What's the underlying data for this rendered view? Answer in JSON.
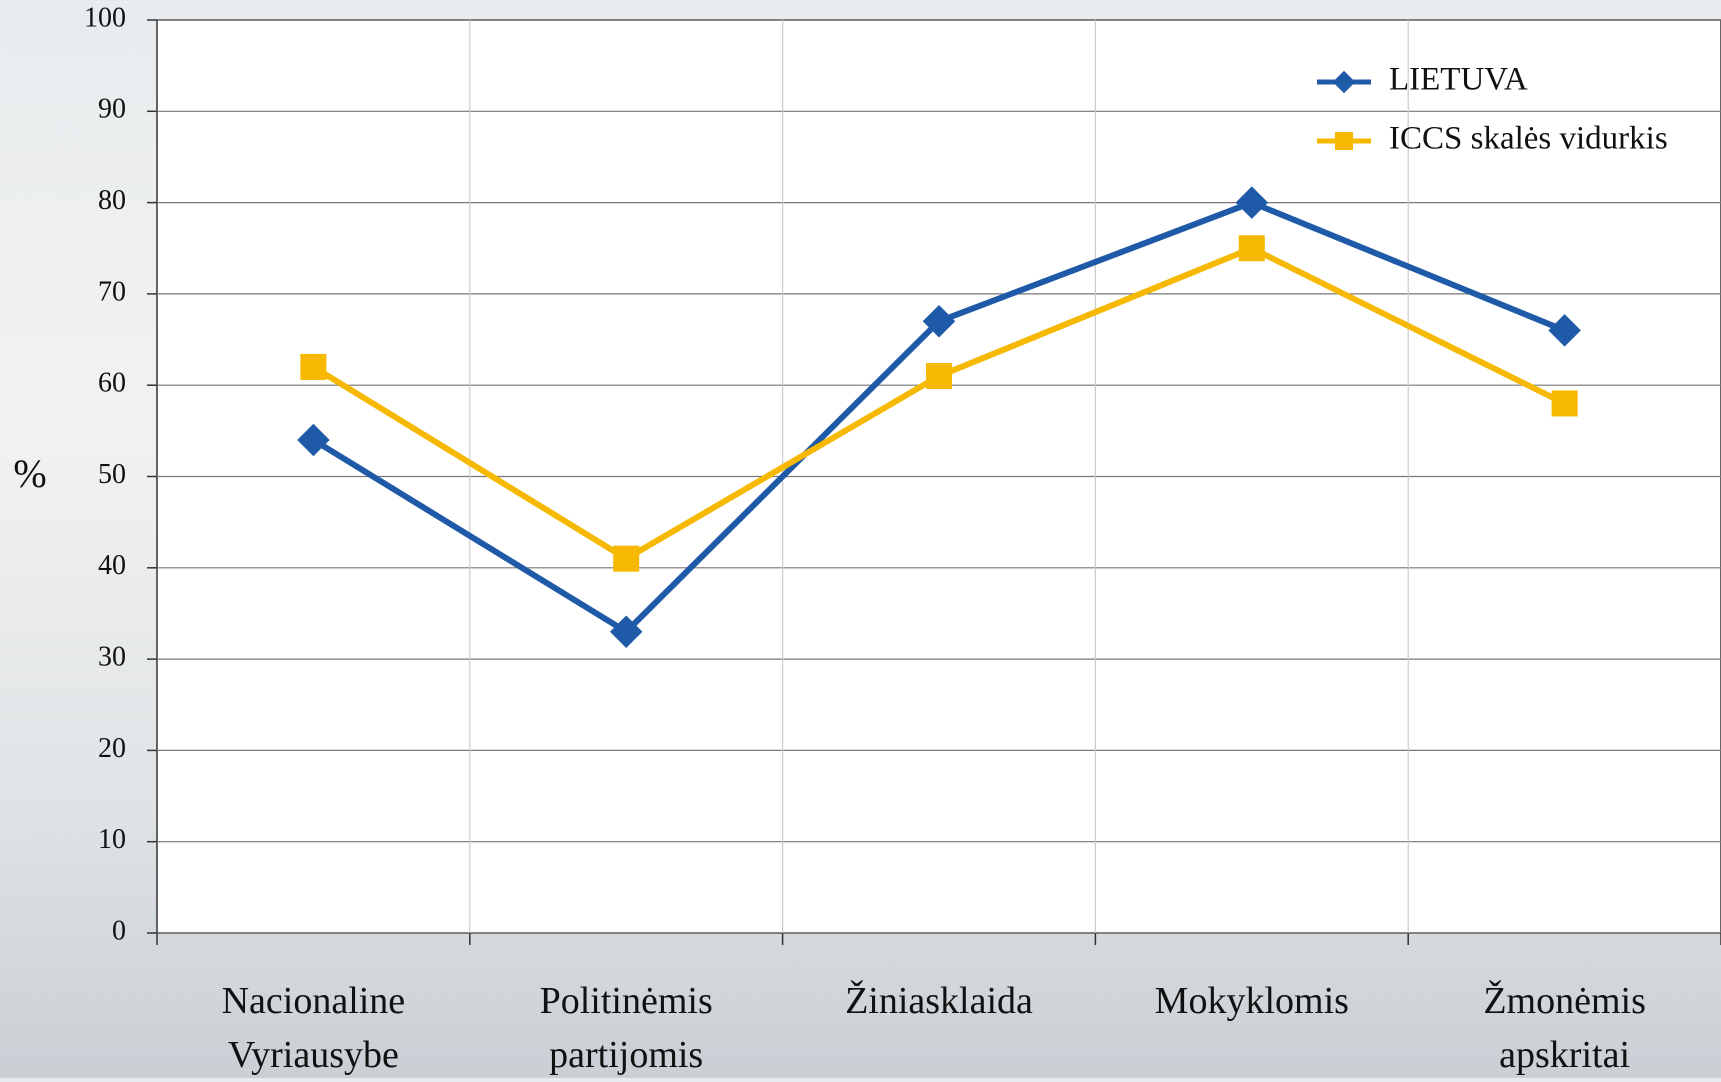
{
  "chart_data": {
    "type": "line",
    "y_label": "%",
    "categories": [
      "Nacionaline\nVyriausybe",
      "Politinėmis\npartijomis",
      "Žiniasklaida",
      "Mokyklomis",
      "Žmonėmis\napskritai"
    ],
    "series": [
      {
        "name": "LIETUVA",
        "color": "#1f5aa8",
        "marker": "diamond",
        "values": [
          54,
          33,
          67,
          80,
          66
        ]
      },
      {
        "name": "ICCS skalės vidurkis",
        "color": "#f6b800",
        "marker": "square",
        "values": [
          62,
          41,
          61,
          75,
          58
        ]
      }
    ],
    "ylim": [
      0,
      100
    ],
    "yticks": [
      0,
      10,
      20,
      30,
      40,
      50,
      60,
      70,
      80,
      90,
      100
    ],
    "grid": true,
    "legend": "top-right"
  }
}
